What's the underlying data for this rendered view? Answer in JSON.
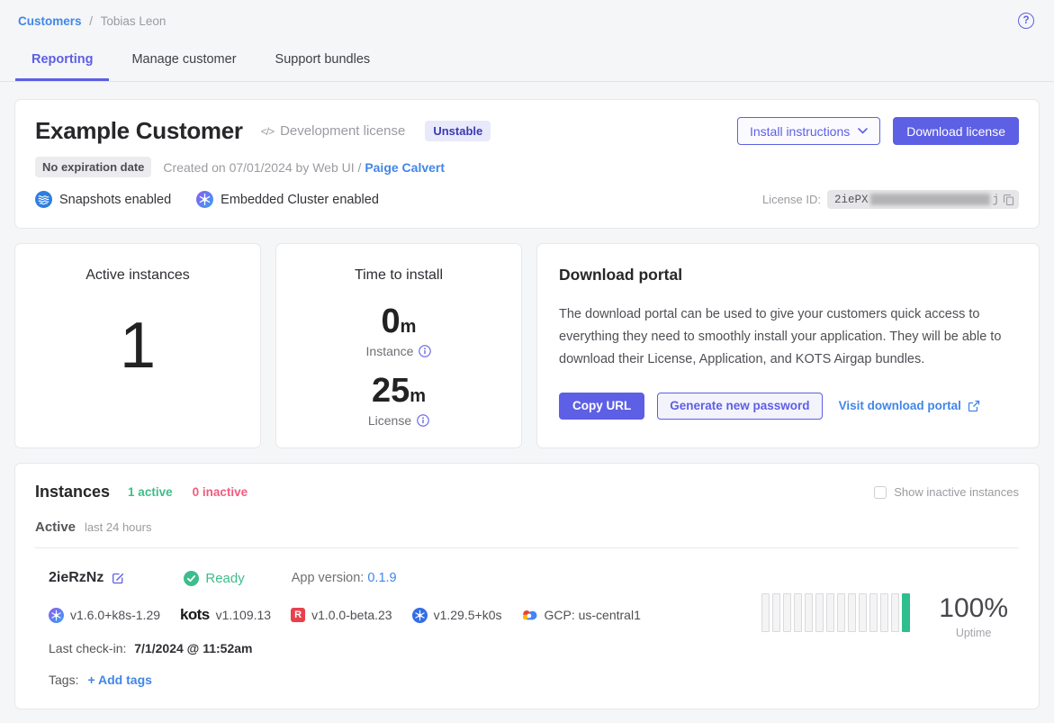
{
  "colors": {
    "accent_purple": "#5d5fe4",
    "link_blue": "#4186e8",
    "success_green": "#3dbd8c",
    "inactive_pink": "#f05c7e",
    "uptime_bar_green": "#2fbf8f"
  },
  "icons": {
    "help": "?",
    "code": "</>"
  },
  "breadcrumb": {
    "link": "Customers",
    "separator": "/",
    "current": "Tobias Leon"
  },
  "tabs": [
    {
      "label": "Reporting",
      "active": true
    },
    {
      "label": "Manage customer",
      "active": false
    },
    {
      "label": "Support bundles",
      "active": false
    }
  ],
  "customer": {
    "name": "Example Customer",
    "license_type": "Development license",
    "channel_badge": "Unstable",
    "expiration_badge": "No expiration date",
    "created_text": "Created on 07/01/2024 by Web UI /",
    "created_by": "Paige Calvert",
    "features": [
      {
        "label": "Snapshots enabled"
      },
      {
        "label": "Embedded Cluster enabled"
      }
    ],
    "install_instructions_label": "Install instructions",
    "download_license_label": "Download license",
    "license_id_label": "License ID:",
    "license_id_visible": "2iePX",
    "license_id_tail": "j"
  },
  "stats": {
    "active_instances": {
      "title": "Active instances",
      "value": "1"
    },
    "time_to_install": {
      "title": "Time to install",
      "instance_value": "0",
      "instance_unit": "m",
      "instance_label": "Instance",
      "license_value": "25",
      "license_unit": "m",
      "license_label": "License"
    }
  },
  "download_portal": {
    "title": "Download portal",
    "description": "The download portal can be used to give your customers quick access to everything they need to smoothly install your application. They will be able to download their License, Application, and KOTS Airgap bundles.",
    "copy_url_label": "Copy URL",
    "generate_password_label": "Generate new password",
    "visit_portal_label": "Visit download portal"
  },
  "instances": {
    "title": "Instances",
    "active_count": "1 active",
    "inactive_count": "0 inactive",
    "show_inactive_label": "Show inactive instances",
    "section_label": "Active",
    "section_sublabel": "last 24 hours",
    "instance": {
      "id": "2ieRzNz",
      "status": "Ready",
      "app_version_label": "App version:",
      "app_version": "0.1.9",
      "versions": [
        {
          "icon": "embedded-cluster-icon",
          "text": "v1.6.0+k8s-1.29"
        },
        {
          "icon": "kots-logo",
          "icon_text": "kots",
          "text": "v1.109.13"
        },
        {
          "icon": "replicated-sdk-icon",
          "icon_text": "R",
          "text": "v1.0.0-beta.23"
        },
        {
          "icon": "kubernetes-icon",
          "text": "v1.29.5+k0s"
        },
        {
          "icon": "gcp-icon",
          "text": "GCP: us-central1"
        }
      ],
      "last_checkin_label": "Last check-in:",
      "last_checkin": "7/1/2024 @ 11:52am",
      "tags_label": "Tags:",
      "add_tags_label": "+ Add tags",
      "uptime_value": "100%",
      "uptime_label": "Uptime",
      "uptime_bars": {
        "total": 14,
        "green_last": 1
      }
    }
  }
}
